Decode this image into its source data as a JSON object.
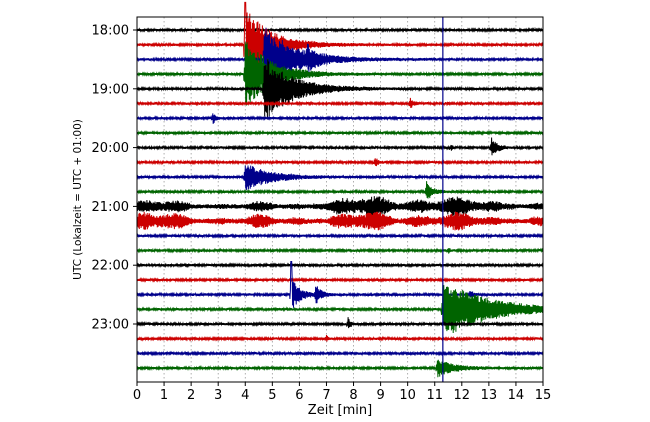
{
  "chart_data": {
    "type": "line",
    "title": "",
    "xlabel": "Zeit  [min]",
    "ylabel": "UTC (Lokalzeit = UTC + 01:00)",
    "xlim": [
      0,
      15
    ],
    "x_ticks": [
      "0",
      "1",
      "2",
      "3",
      "4",
      "5",
      "6",
      "7",
      "8",
      "9",
      "10",
      "11",
      "12",
      "13",
      "14",
      "15"
    ],
    "y_ticks": [
      "18:00",
      "19:00",
      "20:00",
      "21:00",
      "22:00",
      "23:00"
    ],
    "grid": "vertical dotted",
    "line_colors": [
      "#000000",
      "#cc0000",
      "#00008b",
      "#006400"
    ],
    "marker_line_x": 11.3,
    "trace_count": 24,
    "noisy_traces": [
      12,
      13
    ],
    "events": [
      {
        "trace": 1,
        "x": 4.0,
        "amp": 5.0,
        "decay": 0.9,
        "up": 3.2
      },
      {
        "trace": 2,
        "x": 4.7,
        "amp": 4.5,
        "decay": 1.1,
        "up": 1.3
      },
      {
        "trace": 2,
        "x": 6.3,
        "amp": 1.2,
        "decay": 0.2,
        "up": 1.0
      },
      {
        "trace": 3,
        "x": 4.0,
        "amp": 5.0,
        "decay": 0.9,
        "up": 0.3
      },
      {
        "trace": 4,
        "x": 4.7,
        "amp": 4.5,
        "decay": 1.0,
        "up": 0.2
      },
      {
        "trace": 5,
        "x": 10.1,
        "amp": 0.8,
        "decay": 0.1,
        "up": 1.0
      },
      {
        "trace": 6,
        "x": 2.8,
        "amp": 0.8,
        "decay": 0.1,
        "up": 1.0
      },
      {
        "trace": 8,
        "x": 13.1,
        "amp": 1.4,
        "decay": 0.2,
        "up": 1.0
      },
      {
        "trace": 8,
        "x": 11.6,
        "amp": 0.5,
        "decay": 0.05,
        "up": 1.0
      },
      {
        "trace": 9,
        "x": 8.8,
        "amp": 0.7,
        "decay": 0.1,
        "up": 1.0
      },
      {
        "trace": 10,
        "x": 4.0,
        "amp": 1.8,
        "decay": 0.9,
        "up": 1.0
      },
      {
        "trace": 11,
        "x": 10.7,
        "amp": 1.4,
        "decay": 0.2,
        "up": 1.0
      },
      {
        "trace": 15,
        "x": 11.5,
        "amp": 0.4,
        "decay": 0.05,
        "up": 1.0
      },
      {
        "trace": 18,
        "x": 5.7,
        "amp": 2.2,
        "decay": 0.3,
        "up": 2.5
      },
      {
        "trace": 18,
        "x": 6.6,
        "amp": 1.2,
        "decay": 0.2,
        "up": 1.0
      },
      {
        "trace": 18,
        "x": 12.3,
        "amp": 0.6,
        "decay": 0.1,
        "up": 1.0
      },
      {
        "trace": 19,
        "x": 11.3,
        "amp": 4.0,
        "decay": 1.6,
        "up": 1.0
      },
      {
        "trace": 20,
        "x": 7.8,
        "amp": 0.8,
        "decay": 0.1,
        "up": 1.0
      },
      {
        "trace": 21,
        "x": 7.0,
        "amp": 0.5,
        "decay": 0.05,
        "up": 1.0
      },
      {
        "trace": 23,
        "x": 11.1,
        "amp": 1.2,
        "decay": 0.6,
        "up": 1.0
      }
    ]
  }
}
